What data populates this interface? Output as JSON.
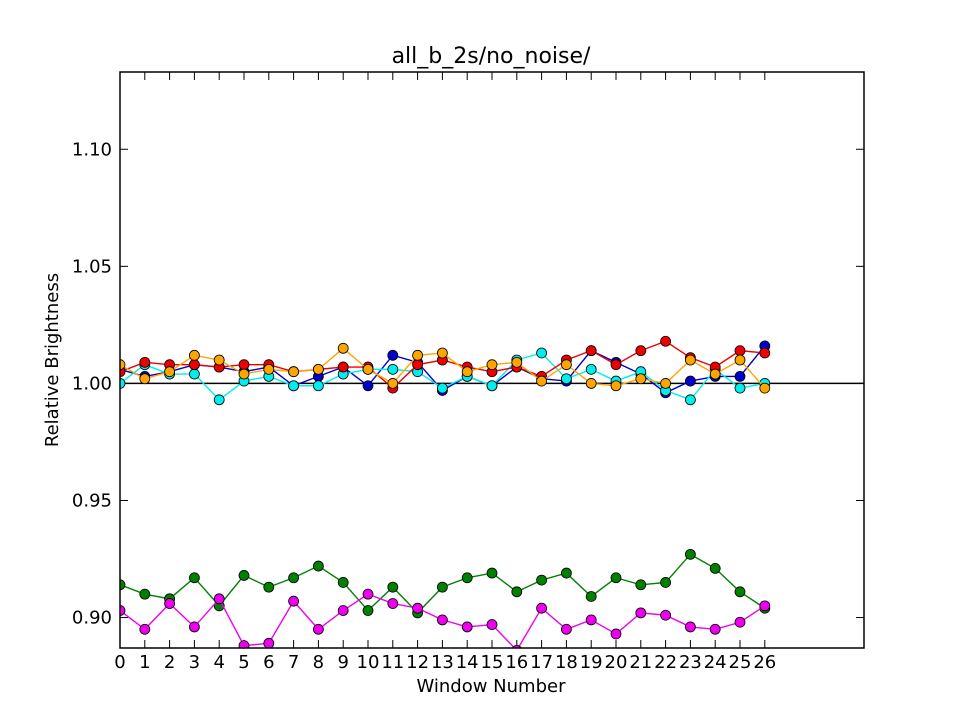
{
  "chart_data": {
    "type": "line",
    "title": "all_b_2s/no_noise/",
    "xlabel": "Window Number",
    "ylabel": "Relative Brightness",
    "xlim": [
      0,
      30
    ],
    "ylim": [
      0.887,
      1.133
    ],
    "xticks": [
      0,
      1,
      2,
      3,
      4,
      5,
      6,
      7,
      8,
      9,
      10,
      11,
      12,
      13,
      14,
      15,
      16,
      17,
      18,
      19,
      20,
      21,
      22,
      23,
      24,
      25,
      26
    ],
    "xtick_labels": [
      "0",
      "1",
      "2",
      "3",
      "4",
      "5",
      "6",
      "7",
      "8",
      "9",
      "10",
      "11",
      "12",
      "13",
      "14",
      "15",
      "16",
      "17",
      "18",
      "19",
      "20",
      "21",
      "22",
      "23",
      "24",
      "25",
      "26"
    ],
    "yticks": [
      0.9,
      0.95,
      1.0,
      1.05,
      1.1
    ],
    "ytick_labels": [
      "0.90",
      "0.95",
      "1.00",
      "1.05",
      "1.10"
    ],
    "reference_line": 1.0,
    "reference_color": "#000000",
    "grid": false,
    "x": [
      0,
      1,
      2,
      3,
      4,
      5,
      6,
      7,
      8,
      9,
      10,
      11,
      12,
      13,
      14,
      15,
      16,
      17,
      18,
      19,
      20,
      21,
      22,
      23,
      24,
      25,
      26
    ],
    "series": [
      {
        "color": "#0000cc",
        "values": [
          1.006,
          1.003,
          1.005,
          1.008,
          1.007,
          1.005,
          1.007,
          0.999,
          1.003,
          1.007,
          0.999,
          1.012,
          1.009,
          0.997,
          1.003,
          0.999,
          1.007,
          1.002,
          1.001,
          1.014,
          1.009,
          1.004,
          0.996,
          1.001,
          1.003,
          1.003,
          1.016
        ]
      },
      {
        "color": "#00eeee",
        "values": [
          1.0,
          1.008,
          1.004,
          1.004,
          0.993,
          1.001,
          1.003,
          0.999,
          0.999,
          1.004,
          1.006,
          1.006,
          1.005,
          0.998,
          1.003,
          0.999,
          1.01,
          1.013,
          1.002,
          1.006,
          1.001,
          1.005,
          0.997,
          0.993,
          1.006,
          0.998,
          1.0
        ]
      },
      {
        "color": "#ee0000",
        "values": [
          1.005,
          1.009,
          1.008,
          1.008,
          1.007,
          1.008,
          1.008,
          1.005,
          1.006,
          1.007,
          1.007,
          0.998,
          1.008,
          1.01,
          1.007,
          1.005,
          1.007,
          1.003,
          1.01,
          1.014,
          1.008,
          1.014,
          1.018,
          1.011,
          1.007,
          1.014,
          1.013
        ]
      },
      {
        "color": "#ffa500",
        "values": [
          1.008,
          1.002,
          1.005,
          1.012,
          1.01,
          1.004,
          1.006,
          1.005,
          1.006,
          1.015,
          1.006,
          1.0,
          1.012,
          1.013,
          1.005,
          1.008,
          1.009,
          1.001,
          1.008,
          1.0,
          0.999,
          1.002,
          1.0,
          1.01,
          1.004,
          1.01,
          0.998
        ]
      },
      {
        "color": "#008000",
        "values": [
          0.914,
          0.91,
          0.908,
          0.917,
          0.905,
          0.918,
          0.913,
          0.917,
          0.922,
          0.915,
          0.903,
          0.913,
          0.902,
          0.913,
          0.917,
          0.919,
          0.911,
          0.916,
          0.919,
          0.909,
          0.917,
          0.914,
          0.915,
          0.927,
          0.921,
          0.911,
          0.904
        ]
      },
      {
        "color": "#ee00ee",
        "values": [
          0.903,
          0.895,
          0.906,
          0.896,
          0.908,
          0.888,
          0.889,
          0.907,
          0.895,
          0.903,
          0.91,
          0.906,
          0.904,
          0.899,
          0.896,
          0.897,
          0.886,
          0.904,
          0.895,
          0.899,
          0.893,
          0.902,
          0.901,
          0.896,
          0.895,
          0.898,
          0.905
        ]
      }
    ]
  }
}
